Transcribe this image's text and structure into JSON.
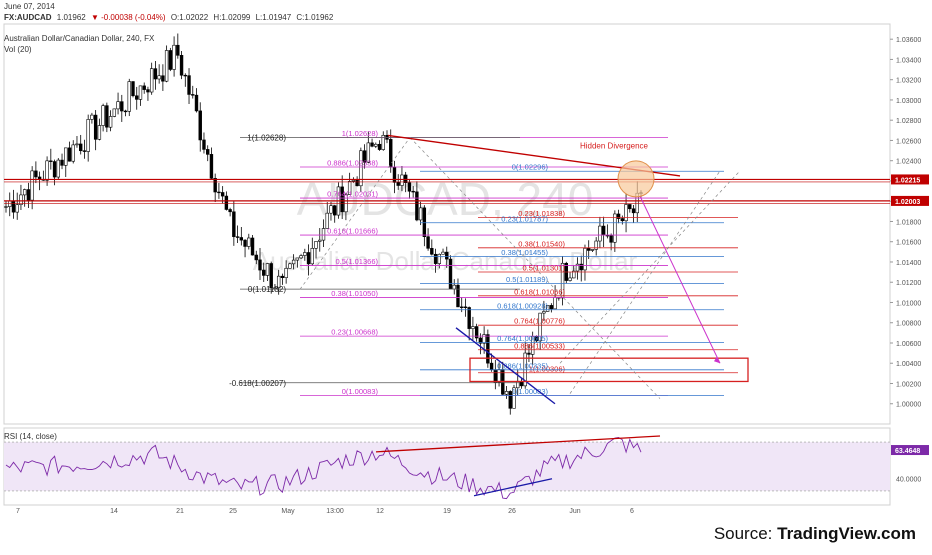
{
  "header": {
    "date": "June 07, 2014",
    "symbol": "FX:AUDCAD",
    "last": "1.01962",
    "change": "▼ -0.00038 (-0.04%)",
    "open": "O:1.02022",
    "high": "H:1.02099",
    "low": "L:1.01947",
    "close": "C:1.01962",
    "title": "Australian Dollar/Canadian Dollar, 240, FX",
    "vol": "Vol (20)",
    "rsi_label": "RSI (14, close)"
  },
  "watermark": {
    "big": "AUDCAD, 240",
    "small": "Australian Dollar/Canadian Dollar"
  },
  "footer": {
    "source_prefix": "Source: ",
    "source_name": "TradingView.com"
  },
  "annotation": "Hidden Divergence",
  "colors": {
    "up_candle": "#ffffff",
    "down_candle": "#000000",
    "fib_magenta": "#cc33cc",
    "fib_red": "#d62020",
    "fib_blue": "#3377cc",
    "resistance": "#c00000",
    "rsi_fill": "#f0e6f7",
    "rsi_line": "#7d2aa8",
    "divergence_circle": "#f8c99a"
  },
  "chart_data": {
    "type": "candlestick",
    "instrument": "AUDCAD",
    "timeframe": "240",
    "y_range": [
      0.998,
      1.0375
    ],
    "y_ticks": [
      "1.00000",
      "1.00200",
      "1.00400",
      "1.00600",
      "1.00800",
      "1.01000",
      "1.01200",
      "1.01400",
      "1.01600",
      "1.01800",
      "1.02000",
      "1.02200",
      "1.02400",
      "1.02600",
      "1.02800",
      "1.03000",
      "1.03200",
      "1.03400",
      "1.03600"
    ],
    "x_labels": [
      "7",
      "14",
      "21",
      "25",
      "May",
      "13:00",
      "12",
      "19",
      "26",
      "Jun",
      "6"
    ],
    "price_tags": [
      "1.02215",
      "1.02003"
    ],
    "horizontal_levels": [
      1.02215,
      1.02003
    ],
    "swing_points": [
      {
        "label": "start",
        "t": 0,
        "price": 1.0195
      },
      {
        "label": "peak",
        "t": 46,
        "price": 1.0345
      },
      {
        "label": "dip",
        "t": 60,
        "price": 1.0175
      },
      {
        "label": "low",
        "t": 74,
        "price": 1.0113
      },
      {
        "label": "high",
        "t": 100,
        "price": 1.0263
      },
      {
        "label": "low",
        "t": 135,
        "price": 1.0008
      },
      {
        "label": "swing",
        "t": 150,
        "price": 1.0135
      },
      {
        "label": "end",
        "t": 170,
        "price": 1.0196
      }
    ],
    "fib_sets": [
      {
        "name": "left",
        "color": "magenta",
        "levels": [
          {
            "text": "1(1.02628)",
            "price": 1.02628
          },
          {
            "text": "0.886(1.02338)",
            "price": 1.02338
          },
          {
            "text": "0.764(1.02031)",
            "price": 1.02031
          },
          {
            "text": "0.618(1.01666)",
            "price": 1.01666
          },
          {
            "text": "0.5(1.01366)",
            "price": 1.01366
          },
          {
            "text": "0.38(1.01050)",
            "price": 1.0105
          },
          {
            "text": "0.23(1.00668)",
            "price": 1.00668
          },
          {
            "text": "0(1.00083)",
            "price": 1.00083
          }
        ],
        "anchor_labels": [
          {
            "text": "1(1.02628)",
            "price": 1.02628
          },
          {
            "text": "0(1.01132)",
            "price": 1.01132
          },
          {
            "text": "-0.618(1.00207)",
            "price": 1.00207
          }
        ]
      },
      {
        "name": "right_red",
        "color": "red",
        "levels": [
          {
            "text": "0.23(1.01838)",
            "price": 1.01838
          },
          {
            "text": "0.38(1.01540)",
            "price": 1.0154
          },
          {
            "text": "0.5(1.01301)",
            "price": 1.01301
          },
          {
            "text": "0.618(1.01066)",
            "price": 1.01066
          },
          {
            "text": "0.764(1.00776)",
            "price": 1.00776
          },
          {
            "text": "0.886(1.00533)",
            "price": 1.00533
          },
          {
            "text": "1(1.00306)",
            "price": 1.00306
          }
        ]
      },
      {
        "name": "right_blue",
        "color": "blue",
        "levels": [
          {
            "text": "0(1.02296)",
            "price": 1.02296
          },
          {
            "text": "0.23(1.01787)",
            "price": 1.01787
          },
          {
            "text": "0.38(1.01455)",
            "price": 1.01455
          },
          {
            "text": "0.5(1.01189)",
            "price": 1.01189
          },
          {
            "text": "0.618(1.00928)",
            "price": 1.00928
          },
          {
            "text": "0.764(1.00605)",
            "price": 1.00605
          },
          {
            "text": "0.886(1.00335)",
            "price": 1.00335
          },
          {
            "text": "1(1.00083)",
            "price": 1.00083
          }
        ]
      }
    ],
    "rsi": {
      "period": 14,
      "last": "63.4648",
      "y_tick": "40.0000",
      "overbought": 70,
      "oversold": 30,
      "swing_points": [
        {
          "t": 0,
          "v": 48
        },
        {
          "t": 20,
          "v": 52
        },
        {
          "t": 40,
          "v": 60
        },
        {
          "t": 52,
          "v": 42
        },
        {
          "t": 62,
          "v": 33
        },
        {
          "t": 74,
          "v": 36
        },
        {
          "t": 90,
          "v": 55
        },
        {
          "t": 100,
          "v": 62
        },
        {
          "t": 112,
          "v": 45
        },
        {
          "t": 125,
          "v": 35
        },
        {
          "t": 135,
          "v": 28
        },
        {
          "t": 145,
          "v": 50
        },
        {
          "t": 155,
          "v": 60
        },
        {
          "t": 164,
          "v": 70
        },
        {
          "t": 170,
          "v": 63
        }
      ]
    }
  }
}
